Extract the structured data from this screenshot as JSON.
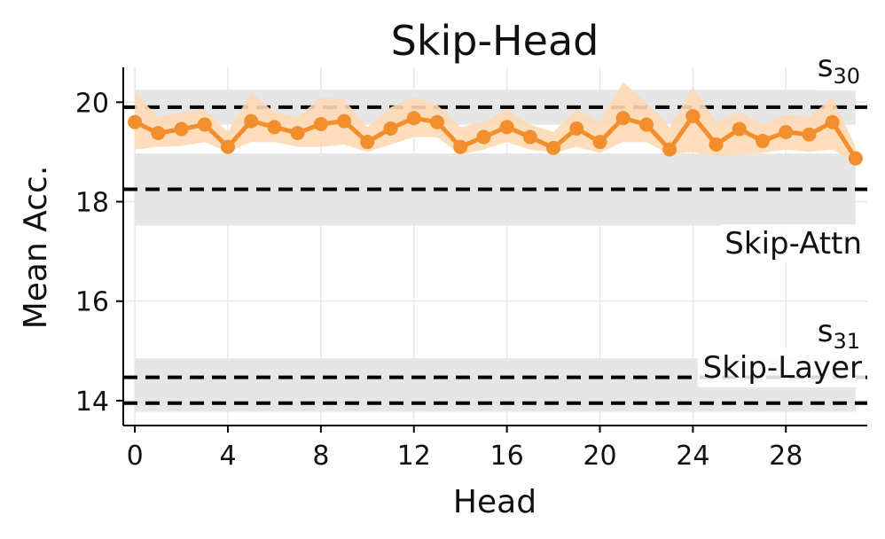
{
  "chart_data": {
    "type": "line",
    "title": "Skip-Head",
    "xlabel": "Head",
    "ylabel": "Mean Acc.",
    "xlim": [
      -0.5,
      31.5
    ],
    "ylim": [
      13.5,
      20.7
    ],
    "x_ticks": [
      0,
      4,
      8,
      12,
      16,
      20,
      24,
      28
    ],
    "y_ticks": [
      14,
      16,
      18,
      20
    ],
    "grid": true,
    "series": [
      {
        "color": "#f28e2b",
        "band_color": "#fdd9b5",
        "x": [
          0,
          1,
          2,
          3,
          4,
          5,
          6,
          7,
          8,
          9,
          10,
          11,
          12,
          13,
          14,
          15,
          16,
          17,
          18,
          19,
          20,
          21,
          22,
          23,
          24,
          25,
          26,
          27,
          28,
          29,
          30,
          31
        ],
        "y": [
          19.6,
          19.38,
          19.46,
          19.55,
          19.1,
          19.62,
          19.5,
          19.38,
          19.56,
          19.62,
          19.2,
          19.47,
          19.68,
          19.6,
          19.1,
          19.3,
          19.5,
          19.3,
          19.08,
          19.47,
          19.2,
          19.68,
          19.55,
          19.05,
          19.72,
          19.15,
          19.46,
          19.22,
          19.4,
          19.35,
          19.6,
          18.87
        ],
        "lower": [
          19.05,
          19.1,
          19.12,
          19.2,
          19.0,
          19.2,
          19.2,
          19.1,
          19.1,
          19.15,
          19.0,
          19.15,
          19.3,
          19.3,
          18.95,
          19.05,
          19.2,
          19.05,
          18.98,
          19.1,
          18.98,
          19.2,
          19.2,
          18.95,
          19.0,
          18.9,
          18.95,
          18.98,
          19.05,
          19.0,
          19.05,
          18.8
        ],
        "upper": [
          20.2,
          19.7,
          19.8,
          19.85,
          19.4,
          20.2,
          19.8,
          19.7,
          20.1,
          20.05,
          19.5,
          19.9,
          20.1,
          19.95,
          19.5,
          19.6,
          19.85,
          19.55,
          19.4,
          19.85,
          19.6,
          20.4,
          20.0,
          19.5,
          20.3,
          19.6,
          19.8,
          19.55,
          19.75,
          19.7,
          20.1,
          19.1
        ]
      }
    ],
    "reference_lines": [
      {
        "label": "s30",
        "mean": 19.9,
        "band": [
          19.55,
          20.25
        ],
        "style": "dashed"
      },
      {
        "label": "Skip-Attn",
        "mean": 18.25,
        "band": [
          17.52,
          18.97
        ],
        "style": "dashed"
      },
      {
        "label": "s31",
        "mean": 14.47,
        "band": [
          14.08,
          14.85
        ],
        "style": "dashed"
      },
      {
        "label": "Skip-Layer",
        "mean": 13.95,
        "band": [
          13.78,
          14.12
        ],
        "style": "dashed"
      }
    ],
    "band_color": "#e6e6e6",
    "annotations": {
      "s30_base": "s",
      "s30_sub": "30",
      "skip_attn": "Skip-Attn",
      "s31_base": "s",
      "s31_sub": "31",
      "skip_layer": "Skip-Layer"
    }
  }
}
